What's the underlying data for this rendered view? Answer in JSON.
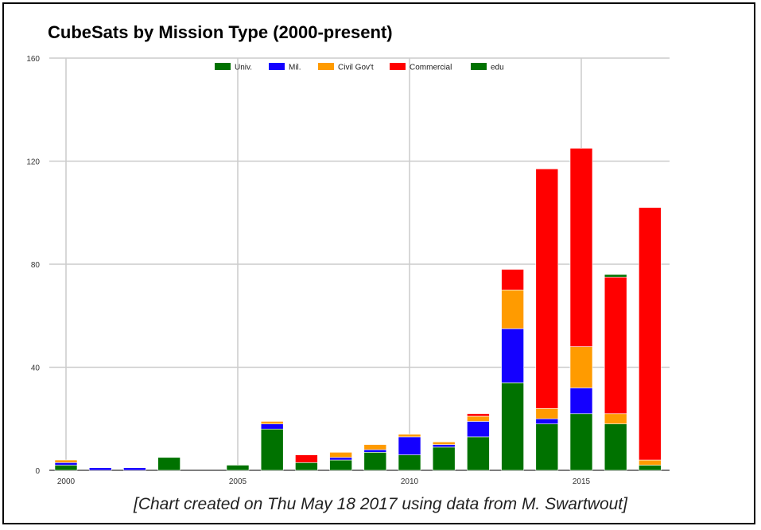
{
  "chart_data": {
    "type": "bar",
    "stacked": true,
    "title": "CubeSats by Mission Type (2000-present)",
    "caption": "[Chart created on Thu May 18 2017 using data from M. Swartwout]",
    "xlabel": "",
    "ylabel": "",
    "ylim": [
      0,
      160
    ],
    "y_ticks": [
      0,
      40,
      80,
      120,
      160
    ],
    "x_ticks": [
      2000,
      2005,
      2010,
      2015
    ],
    "x": [
      2000,
      2001,
      2002,
      2003,
      2004,
      2005,
      2006,
      2007,
      2008,
      2009,
      2010,
      2011,
      2012,
      2013,
      2014,
      2015,
      2016,
      2017
    ],
    "grid": true,
    "legend_position": "top",
    "series": [
      {
        "name": "Univ.",
        "color": "#007200",
        "values": [
          2,
          0,
          0,
          5,
          0,
          2,
          16,
          3,
          4,
          7,
          6,
          9,
          13,
          34,
          18,
          22,
          18,
          2
        ]
      },
      {
        "name": "Mil.",
        "color": "#1400ff",
        "values": [
          1,
          1,
          1,
          0,
          0,
          0,
          2,
          0,
          1,
          1,
          7,
          1,
          6,
          21,
          2,
          10,
          0,
          0
        ]
      },
      {
        "name": "Civil Gov't",
        "color": "#ff9b00",
        "values": [
          1,
          0,
          0,
          0,
          0,
          0,
          1,
          0,
          2,
          2,
          1,
          1,
          2,
          15,
          4,
          16,
          4,
          2
        ]
      },
      {
        "name": "Commercial",
        "color": "#ff0000",
        "values": [
          0,
          0,
          0,
          0,
          0,
          0,
          0,
          3,
          0,
          0,
          0,
          0,
          1,
          8,
          93,
          77,
          53,
          98
        ]
      },
      {
        "name": "edu",
        "color": "#007200",
        "values": [
          0,
          0,
          0,
          0,
          0,
          0,
          0,
          0,
          0,
          0,
          0,
          0,
          0,
          0,
          0,
          0,
          1,
          0
        ]
      }
    ]
  }
}
